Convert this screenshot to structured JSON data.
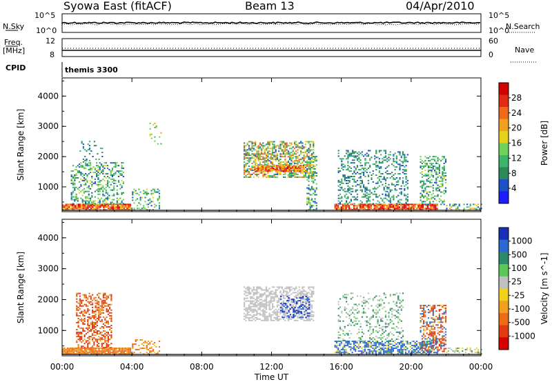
{
  "header": {
    "station": "Syowa East (fitACF)",
    "beam": "Beam 13",
    "date": "04/Apr/2010"
  },
  "strip_labels": {
    "nsky": "N.Sky",
    "nsearch": "N.Search",
    "freq": "Freq.",
    "freq_unit": "[MHz]",
    "nave": "Nave",
    "cpid": "CPID",
    "cpid_value": "themis 3300",
    "noise_ticks_left": [
      "10^5",
      "10^0"
    ],
    "noise_ticks_right": [
      "10^5",
      "10^0"
    ],
    "freq_ticks_left": [
      "12",
      "8"
    ],
    "nave_ticks_right": [
      "60",
      "0"
    ]
  },
  "colors": {
    "power": [
      "#1c1cff",
      "#1e50c8",
      "#2a8a5a",
      "#3bb66a",
      "#6fd35b",
      "#e6d11a",
      "#f0a21e",
      "#f06a1a",
      "#e22a12",
      "#d20000"
    ],
    "velocity_pos": [
      "#1a2fb8",
      "#2a6ad0",
      "#2c8a6a",
      "#5bc85a"
    ],
    "velocity_zero": "#c0c0c0",
    "velocity_neg": [
      "#f0d21a",
      "#f0a21e",
      "#ee6d14",
      "#e03a10",
      "#d80000"
    ]
  },
  "chart_data": [
    {
      "type": "heatmap",
      "title": "Power",
      "xlabel": "Time UT",
      "ylabel": "Slant Range [km]",
      "xlim": [
        0,
        24
      ],
      "ylim": [
        180,
        4600
      ],
      "xticks": [
        "00:00",
        "04:00",
        "08:00",
        "12:00",
        "16:00",
        "20:00",
        "00:00"
      ],
      "yticks": [
        "1000",
        "2000",
        "3000",
        "4000"
      ],
      "colorbar": {
        "label": "Power [dB]",
        "ticks": [
          "4",
          "8",
          "12",
          "16",
          "20",
          "24",
          "28"
        ],
        "range": [
          0,
          30
        ]
      },
      "regions": [
        {
          "t": [
            0.0,
            3.9
          ],
          "r": [
            220,
            420
          ],
          "v": [
            16,
            30
          ],
          "density": 0.9
        },
        {
          "t": [
            0.5,
            3.5
          ],
          "r": [
            420,
            1800
          ],
          "v": [
            4,
            16
          ],
          "density": 0.35
        },
        {
          "t": [
            1.0,
            2.3
          ],
          "r": [
            1800,
            2500
          ],
          "v": [
            4,
            12
          ],
          "density": 0.15
        },
        {
          "t": [
            4.0,
            5.6
          ],
          "r": [
            220,
            900
          ],
          "v": [
            4,
            16
          ],
          "density": 0.3
        },
        {
          "t": [
            5.0,
            5.7
          ],
          "r": [
            2400,
            3300
          ],
          "v": [
            8,
            20
          ],
          "density": 0.1
        },
        {
          "t": [
            10.4,
            14.4
          ],
          "r": [
            1300,
            2500
          ],
          "v": [
            4,
            24
          ],
          "density": 0.55
        },
        {
          "t": [
            11.0,
            13.8
          ],
          "r": [
            1500,
            1700
          ],
          "v": [
            16,
            28
          ],
          "density": 0.85
        },
        {
          "t": [
            14.0,
            14.6
          ],
          "r": [
            220,
            2000
          ],
          "v": [
            4,
            16
          ],
          "density": 0.35
        },
        {
          "t": [
            15.6,
            21.5
          ],
          "r": [
            220,
            420
          ],
          "v": [
            18,
            30
          ],
          "density": 0.85
        },
        {
          "t": [
            15.8,
            19.8
          ],
          "r": [
            420,
            2200
          ],
          "v": [
            4,
            12
          ],
          "density": 0.3
        },
        {
          "t": [
            20.5,
            22.0
          ],
          "r": [
            400,
            2000
          ],
          "v": [
            4,
            16
          ],
          "density": 0.4
        },
        {
          "t": [
            22.0,
            24.0
          ],
          "r": [
            220,
            420
          ],
          "v": [
            4,
            20
          ],
          "density": 0.4
        }
      ]
    },
    {
      "type": "heatmap",
      "title": "Velocity",
      "xlabel": "Time UT",
      "ylabel": "Slant Range [km]",
      "xlim": [
        0,
        24
      ],
      "ylim": [
        180,
        4600
      ],
      "xticks": [
        "00:00",
        "04:00",
        "08:00",
        "12:00",
        "16:00",
        "20:00",
        "00:00"
      ],
      "yticks": [
        "1000",
        "2000",
        "3000",
        "4000"
      ],
      "colorbar": {
        "label": "Velocity [m s^-1]",
        "ticks": [
          "1000",
          "500",
          "100",
          "25",
          "-25",
          "-100",
          "-500",
          "-1000"
        ],
        "range": [
          -1200,
          1200
        ]
      },
      "regions": [
        {
          "t": [
            0.0,
            3.9
          ],
          "r": [
            220,
            420
          ],
          "v": [
            -500,
            -100
          ],
          "density": 0.9
        },
        {
          "t": [
            0.8,
            2.8
          ],
          "r": [
            420,
            2200
          ],
          "v": [
            -1000,
            -100
          ],
          "density": 0.45
        },
        {
          "t": [
            4.0,
            5.6
          ],
          "r": [
            220,
            700
          ],
          "v": [
            -500,
            -25
          ],
          "density": 0.3
        },
        {
          "t": [
            10.4,
            14.4
          ],
          "r": [
            1300,
            2400
          ],
          "v": [
            -25,
            25
          ],
          "density": 0.55
        },
        {
          "t": [
            12.5,
            14.2
          ],
          "r": [
            1400,
            2100
          ],
          "v": [
            100,
            1000
          ],
          "density": 0.3
        },
        {
          "t": [
            15.6,
            21.5
          ],
          "r": [
            220,
            650
          ],
          "v": [
            -100,
            500
          ],
          "density": 0.6
        },
        {
          "t": [
            15.8,
            19.5
          ],
          "r": [
            650,
            2200
          ],
          "v": [
            -25,
            100
          ],
          "density": 0.2
        },
        {
          "t": [
            20.5,
            22.0
          ],
          "r": [
            300,
            1800
          ],
          "v": [
            -1000,
            500
          ],
          "density": 0.45
        },
        {
          "t": [
            22.0,
            24.0
          ],
          "r": [
            220,
            420
          ],
          "v": [
            -100,
            100
          ],
          "density": 0.35
        }
      ]
    }
  ]
}
